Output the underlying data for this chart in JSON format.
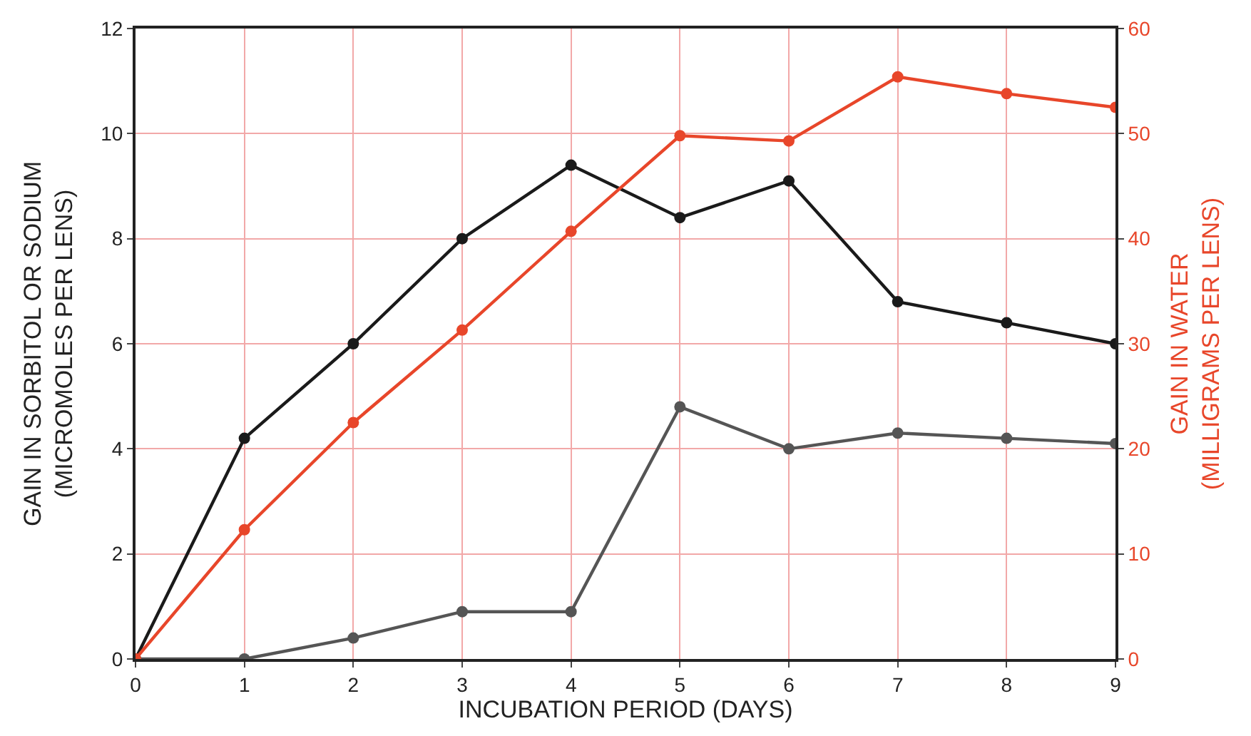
{
  "chart_data": {
    "type": "line",
    "xlabel": "INCUBATION PERIOD (DAYS)",
    "ylabel": "GAIN IN SORBITOL OR SODIUM\n(MICROMOLES PER LENS)",
    "y2label": "GAIN IN WATER\n(MILLIGRAMS PER LENS)",
    "x": [
      0,
      1,
      2,
      3,
      4,
      5,
      6,
      7,
      8,
      9
    ],
    "series": [
      {
        "color": "#1a1a1a",
        "values": [
          0,
          4.2,
          6.0,
          8.0,
          9.4,
          8.4,
          9.1,
          6.8,
          6.4,
          6.0
        ]
      },
      {
        "color": "#555555",
        "values": [
          0,
          0,
          0.4,
          0.9,
          0.9,
          4.8,
          4.0,
          4.3,
          4.2,
          4.1
        ]
      },
      {
        "color": "#e8462a",
        "axis": "y2",
        "values": [
          0,
          12.3,
          22.5,
          31.3,
          40.7,
          49.8,
          49.3,
          55.4,
          53.8,
          52.5
        ]
      }
    ],
    "xlim": [
      0,
      9
    ],
    "xticks": [
      0,
      1,
      2,
      3,
      4,
      5,
      6,
      7,
      8,
      9
    ],
    "ylim": [
      0,
      12
    ],
    "yticks": [
      0,
      2,
      4,
      6,
      8,
      10,
      12
    ],
    "y2lim": [
      0,
      60
    ],
    "y2ticks": [
      0,
      10,
      20,
      30,
      40,
      50,
      60
    ],
    "grid": true,
    "marker": "circle",
    "line_style": "solid"
  }
}
